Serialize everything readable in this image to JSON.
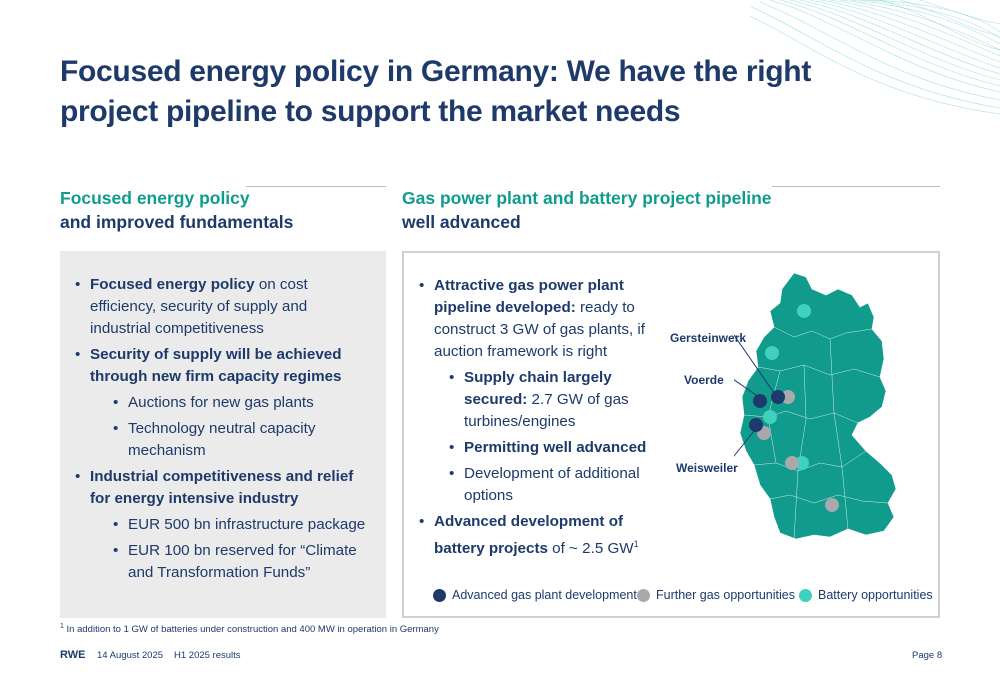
{
  "title": "Focused energy policy in Germany: We have the right project pipeline to support the market needs",
  "left_section": {
    "heading_line1": "Focused energy policy",
    "heading_line2": "and improved fundamentals",
    "items": [
      {
        "bold": "Focused energy policy",
        "text": " on cost efficiency, security of supply and industrial competitiveness",
        "sub": []
      },
      {
        "bold": "Security of supply will be achieved through new firm capacity regimes",
        "text": "",
        "sub": [
          "Auctions for new gas plants",
          "Technology neutral capacity mechanism"
        ]
      },
      {
        "bold": "Industrial competitiveness and relief for energy intensive industry",
        "text": "",
        "sub": [
          "EUR 500 bn infrastructure package",
          "EUR 100 bn reserved for “Climate and Transformation Funds”"
        ]
      }
    ]
  },
  "right_section": {
    "heading_line1": "Gas power plant and battery project pipeline",
    "heading_line2": "well advanced",
    "item1_bold": "Attractive gas power plant pipeline developed:",
    "item1_text": " ready to construct 3 GW of gas plants, if auction framework is right",
    "sub1_bold": "Supply chain largely secured:",
    "sub1_text": " 2.7 GW of gas turbines/engines",
    "sub2_bold": "Permitting well advanced",
    "sub3_text": "Development of additional options",
    "item2_bold": "Advanced development of battery projects",
    "item2_text": " of ~ 2.5 GW",
    "item2_sup": "1",
    "map_labels": {
      "gersteinwerk": "Gersteinwerk",
      "voerde": "Voerde",
      "weisweiler": "Weisweiler"
    },
    "legend": [
      {
        "label": "Advanced gas plant development",
        "color": "#1d3a6b"
      },
      {
        "label": "Further gas opportunities",
        "color": "#a7a9ac"
      },
      {
        "label": "Battery opportunities",
        "color": "#3fd1bd"
      }
    ]
  },
  "colors": {
    "navy": "#1d3a6b",
    "teal": "#0f9c8c",
    "map_fill": "#109b8d"
  },
  "footnote_sup": "1",
  "footnote": " In addition to 1 GW of batteries under construction and 400 MW in operation in Germany",
  "footer": {
    "brand": "RWE",
    "date": "14 August 2025",
    "report": "H1 2025 results",
    "page": "Page 8"
  }
}
